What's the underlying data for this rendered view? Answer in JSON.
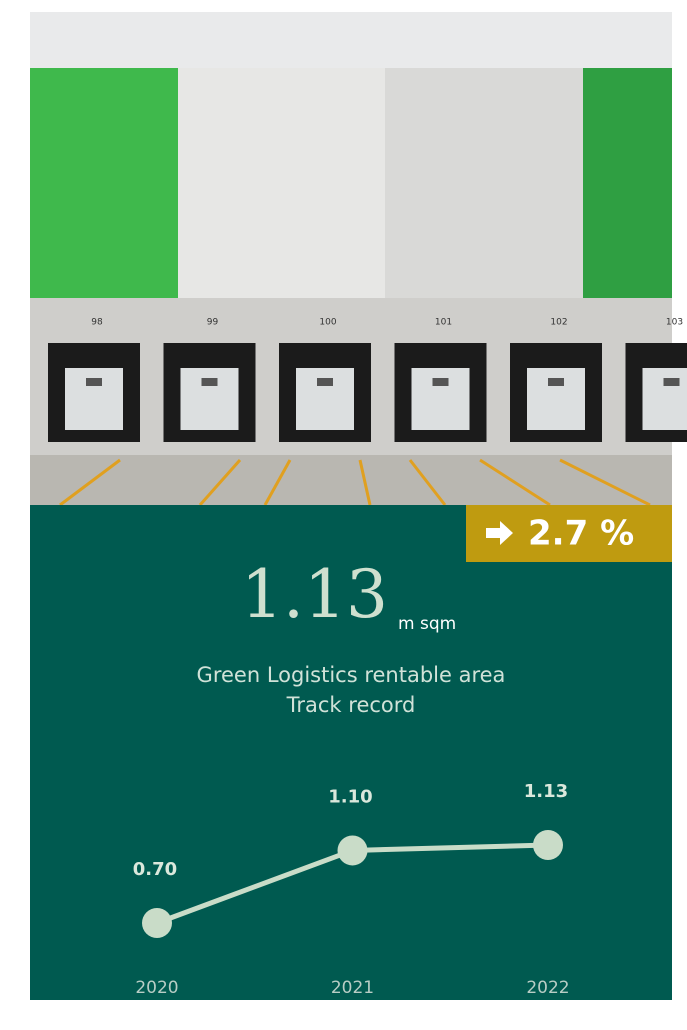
{
  "photo": {
    "door_numbers": [
      "98",
      "99",
      "100",
      "101",
      "102",
      "103"
    ]
  },
  "headline": {
    "change": "2.7 %",
    "value": "1.13",
    "unit": "m sqm"
  },
  "chart_data": {
    "type": "line",
    "title": "Green Logistics rentable area",
    "subtitle": "Track record",
    "categories": [
      "2020",
      "2021",
      "2022"
    ],
    "series": [
      {
        "color": "#c9dcc8",
        "values": [
          0.7,
          1.1,
          1.13
        ],
        "value_labels": [
          "0.70",
          "1.10",
          "1.13"
        ]
      }
    ]
  }
}
